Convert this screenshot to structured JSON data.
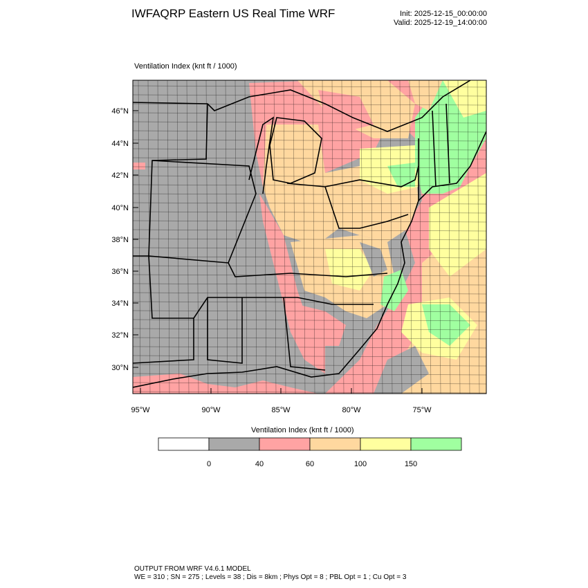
{
  "header": {
    "title": "IWFAQRP Eastern US Real Time WRF",
    "init": "Init: 2025-12-15_00:00:00",
    "valid": "Valid: 2025-12-19_14:00:00"
  },
  "map": {
    "label": "Ventilation Index   (knt ft / 1000)",
    "lat_ticks": [
      "46°N",
      "44°N",
      "42°N",
      "40°N",
      "38°N",
      "36°N",
      "34°N",
      "32°N",
      "30°N"
    ],
    "lon_ticks": [
      "95°W",
      "90°W",
      "85°W",
      "80°W",
      "75°W"
    ]
  },
  "legend": {
    "title": "Ventilation Index  (knt ft / 1000)",
    "bins": [
      {
        "color": "#ffffff"
      },
      {
        "color": "#a9a9a9"
      },
      {
        "color": "#ffa3a3"
      },
      {
        "color": "#ffd89f"
      },
      {
        "color": "#ffff9f"
      },
      {
        "color": "#a0ffa0"
      }
    ],
    "labels": [
      "0",
      "40",
      "60",
      "100",
      "150"
    ]
  },
  "footer": {
    "line1": "OUTPUT FROM WRF V4.6.1 MODEL",
    "line2": "WE = 310 ; SN = 275 ; Levels = 38 ; Dis = 8km ; Phys Opt = 8 ; PBL Opt = 1 ; Cu Opt = 3"
  }
}
